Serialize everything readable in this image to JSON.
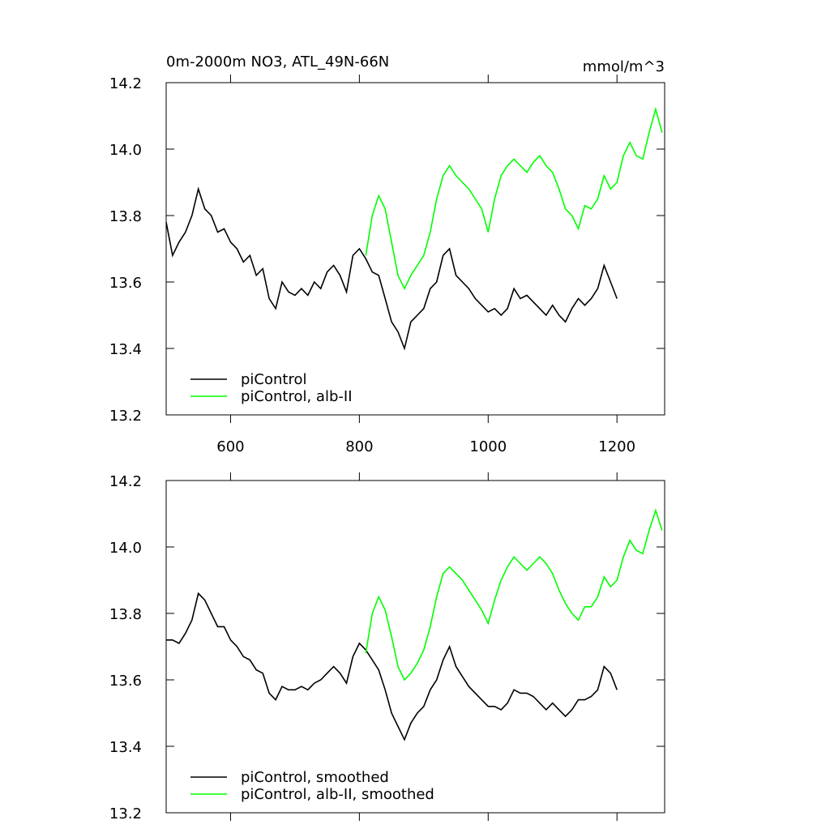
{
  "chart_data": [
    {
      "type": "line",
      "title": "0m-2000m NO3, ATL_49N-66N",
      "subtitle": "mmol/m^3",
      "x": [
        500,
        510,
        520,
        530,
        540,
        550,
        560,
        570,
        580,
        590,
        600,
        610,
        620,
        630,
        640,
        650,
        660,
        670,
        680,
        690,
        700,
        710,
        720,
        730,
        740,
        750,
        760,
        770,
        780,
        790,
        800,
        810,
        820,
        830,
        840,
        850,
        860,
        870,
        880,
        890,
        900,
        910,
        920,
        930,
        940,
        950,
        960,
        970,
        980,
        990,
        1000,
        1010,
        1020,
        1030,
        1040,
        1050,
        1060,
        1070,
        1080,
        1090,
        1100,
        1110,
        1120,
        1130,
        1140,
        1150,
        1160,
        1170,
        1180,
        1190,
        1200,
        1210,
        1220,
        1230,
        1240,
        1250,
        1260,
        1270
      ],
      "series": [
        {
          "name": "piControl",
          "color": "#000000",
          "values": [
            13.78,
            13.68,
            13.72,
            13.75,
            13.8,
            13.88,
            13.82,
            13.8,
            13.75,
            13.76,
            13.72,
            13.7,
            13.66,
            13.68,
            13.62,
            13.64,
            13.55,
            13.52,
            13.6,
            13.57,
            13.56,
            13.58,
            13.56,
            13.6,
            13.58,
            13.63,
            13.65,
            13.62,
            13.57,
            13.68,
            13.7,
            13.67,
            13.63,
            13.62,
            13.55,
            13.48,
            13.45,
            13.4,
            13.48,
            13.5,
            13.52,
            13.58,
            13.6,
            13.68,
            13.7,
            13.62,
            13.6,
            13.58,
            13.55,
            13.53,
            13.51,
            13.52,
            13.5,
            13.52,
            13.58,
            13.55,
            13.56,
            13.54,
            13.52,
            13.5,
            13.53,
            13.5,
            13.48,
            13.52,
            13.55,
            13.53,
            13.55,
            13.58,
            13.65,
            13.6,
            13.55,
            null,
            null,
            null,
            null,
            null,
            null,
            null
          ]
        },
        {
          "name": "piControl, alb-II",
          "color": "#00ff00",
          "values": [
            null,
            null,
            null,
            null,
            null,
            null,
            null,
            null,
            null,
            null,
            null,
            null,
            null,
            null,
            null,
            null,
            null,
            null,
            null,
            null,
            null,
            null,
            null,
            null,
            null,
            null,
            null,
            null,
            null,
            null,
            null,
            13.68,
            13.8,
            13.86,
            13.82,
            13.72,
            13.62,
            13.58,
            13.62,
            13.65,
            13.68,
            13.75,
            13.85,
            13.92,
            13.95,
            13.92,
            13.9,
            13.88,
            13.85,
            13.82,
            13.75,
            13.85,
            13.92,
            13.95,
            13.97,
            13.95,
            13.93,
            13.96,
            13.98,
            13.95,
            13.93,
            13.88,
            13.82,
            13.8,
            13.76,
            13.83,
            13.82,
            13.85,
            13.92,
            13.88,
            13.9,
            13.98,
            14.02,
            13.98,
            13.97,
            14.05,
            14.12,
            14.05
          ]
        }
      ],
      "xlim": [
        500,
        1274
      ],
      "xticks": [
        600,
        800,
        1000,
        1200
      ],
      "xtick_labels": true,
      "ylim": [
        13.2,
        14.2
      ],
      "yticks": [
        13.2,
        13.4,
        13.6,
        13.8,
        {
          "value": 14,
          "label": "14.0"
        },
        14.2
      ]
    },
    {
      "type": "line",
      "x": [
        500,
        510,
        520,
        530,
        540,
        550,
        560,
        570,
        580,
        590,
        600,
        610,
        620,
        630,
        640,
        650,
        660,
        670,
        680,
        690,
        700,
        710,
        720,
        730,
        740,
        750,
        760,
        770,
        780,
        790,
        800,
        810,
        820,
        830,
        840,
        850,
        860,
        870,
        880,
        890,
        900,
        910,
        920,
        930,
        940,
        950,
        960,
        970,
        980,
        990,
        1000,
        1010,
        1020,
        1030,
        1040,
        1050,
        1060,
        1070,
        1080,
        1090,
        1100,
        1110,
        1120,
        1130,
        1140,
        1150,
        1160,
        1170,
        1180,
        1190,
        1200,
        1210,
        1220,
        1230,
        1240,
        1250,
        1260,
        1270
      ],
      "series": [
        {
          "name": "piControl, smoothed",
          "color": "#000000",
          "values": [
            13.72,
            13.72,
            13.71,
            13.74,
            13.78,
            13.86,
            13.84,
            13.8,
            13.76,
            13.76,
            13.72,
            13.7,
            13.67,
            13.66,
            13.63,
            13.62,
            13.56,
            13.54,
            13.58,
            13.57,
            13.57,
            13.58,
            13.57,
            13.59,
            13.6,
            13.62,
            13.64,
            13.62,
            13.59,
            13.67,
            13.71,
            13.69,
            13.66,
            13.63,
            13.57,
            13.5,
            13.46,
            13.42,
            13.47,
            13.5,
            13.52,
            13.57,
            13.6,
            13.66,
            13.7,
            13.64,
            13.61,
            13.58,
            13.56,
            13.54,
            13.52,
            13.52,
            13.51,
            13.53,
            13.57,
            13.56,
            13.56,
            13.55,
            13.53,
            13.51,
            13.53,
            13.51,
            13.49,
            13.51,
            13.54,
            13.54,
            13.55,
            13.57,
            13.64,
            13.62,
            13.57,
            null,
            null,
            null,
            null,
            null,
            null,
            null
          ]
        },
        {
          "name": "piControl, alb-II, smoothed",
          "color": "#00ff00",
          "values": [
            null,
            null,
            null,
            null,
            null,
            null,
            null,
            null,
            null,
            null,
            null,
            null,
            null,
            null,
            null,
            null,
            null,
            null,
            null,
            null,
            null,
            null,
            null,
            null,
            null,
            null,
            null,
            null,
            null,
            null,
            null,
            13.68,
            13.8,
            13.85,
            13.81,
            13.73,
            13.64,
            13.6,
            13.62,
            13.65,
            13.69,
            13.76,
            13.85,
            13.92,
            13.94,
            13.92,
            13.9,
            13.87,
            13.84,
            13.81,
            13.77,
            13.84,
            13.9,
            13.94,
            13.97,
            13.95,
            13.93,
            13.95,
            13.97,
            13.95,
            13.92,
            13.87,
            13.83,
            13.8,
            13.78,
            13.82,
            13.82,
            13.85,
            13.91,
            13.88,
            13.9,
            13.97,
            14.02,
            13.99,
            13.98,
            14.05,
            14.11,
            14.05
          ]
        }
      ],
      "xlim": [
        500,
        1274
      ],
      "xticks": [
        600,
        800,
        1000,
        1200
      ],
      "xtick_labels": false,
      "ylim": [
        13.2,
        14.2
      ],
      "yticks": [
        13.2,
        13.4,
        13.6,
        13.8,
        {
          "value": 14,
          "label": "14.0"
        },
        14.2
      ]
    }
  ]
}
